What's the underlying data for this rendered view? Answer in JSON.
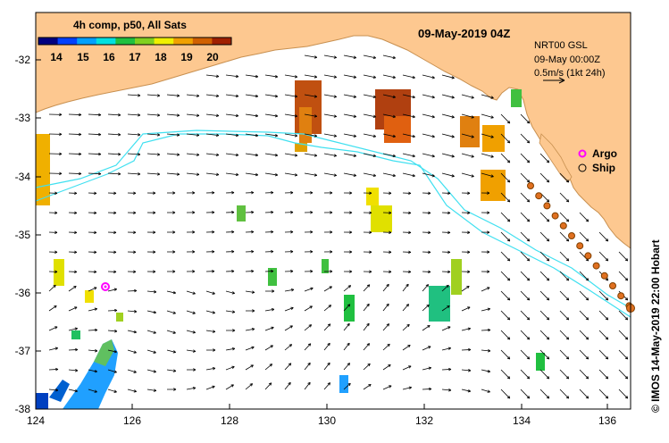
{
  "title": "09-May-2019 04Z",
  "legend": {
    "title": "4h comp, p50, All Sats",
    "ticks": [
      "14",
      "15",
      "16",
      "17",
      "18",
      "19",
      "20"
    ],
    "colors": [
      "#000080",
      "#0040ff",
      "#00a0ff",
      "#00e0e0",
      "#20c040",
      "#80d020",
      "#f0f000",
      "#f0a000",
      "#d06000",
      "#a02000"
    ]
  },
  "current_info": {
    "line1": "NRT00 GSL",
    "line2": "09-May 00:00Z",
    "line3": "0.5m/s (1kt 24h)"
  },
  "markers": {
    "argo_label": "Argo",
    "ship_label": "Ship",
    "argo_color": "#ff00ff",
    "ship_color": "#e07020"
  },
  "axes": {
    "x_ticks": [
      "124",
      "126",
      "128",
      "130",
      "132",
      "134",
      "136"
    ],
    "y_ticks": [
      "-32",
      "-33",
      "-34",
      "-35",
      "-36",
      "-37",
      "-38"
    ]
  },
  "credit": "© IMOS 14-May-2019 22:00 Hobart",
  "colors": {
    "land": "#fdc890",
    "contour": "#40e0f0",
    "vector": "#000000"
  }
}
